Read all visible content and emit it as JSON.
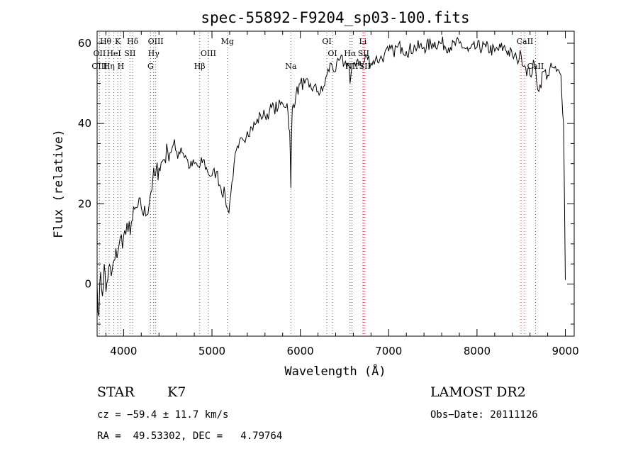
{
  "chart_data": {
    "type": "line",
    "title": "spec-55892-F9204_sp03-100.fits",
    "xlabel": "Wavelength (Å)",
    "ylabel": "Flux (relative)",
    "xlim": [
      3700,
      9100
    ],
    "ylim": [
      -13,
      63
    ],
    "xticks": [
      4000,
      5000,
      6000,
      7000,
      8000,
      9000
    ],
    "yticks": [
      0,
      20,
      40,
      60
    ],
    "grid": false,
    "series": [
      {
        "color": "#000000",
        "x": [
          3700,
          3720,
          3740,
          3760,
          3780,
          3800,
          3830,
          3860,
          3900,
          3950,
          4000,
          4050,
          4100,
          4150,
          4200,
          4250,
          4300,
          4330,
          4360,
          4400,
          4450,
          4500,
          4550,
          4600,
          4650,
          4700,
          4750,
          4800,
          4860,
          4900,
          4950,
          5000,
          5050,
          5100,
          5150,
          5170,
          5185,
          5200,
          5250,
          5300,
          5350,
          5400,
          5450,
          5500,
          5550,
          5600,
          5650,
          5700,
          5750,
          5800,
          5850,
          5880,
          5893,
          5900,
          5910,
          5950,
          6000,
          6050,
          6100,
          6150,
          6200,
          6250,
          6300,
          6350,
          6400,
          6450,
          6500,
          6550,
          6563,
          6600,
          6650,
          6700,
          6750,
          6800,
          6850,
          6900,
          6950,
          7000,
          7050,
          7100,
          7150,
          7200,
          7300,
          7400,
          7500,
          7600,
          7700,
          7800,
          7900,
          8000,
          8100,
          8200,
          8300,
          8400,
          8450,
          8500,
          8550,
          8600,
          8650,
          8700,
          8750,
          8800,
          8850,
          8900,
          8950,
          8980,
          9000
        ],
        "y": [
          0,
          -8,
          3,
          -3,
          5,
          -2,
          4,
          2,
          6,
          10,
          12,
          13,
          16,
          19,
          19,
          17,
          22,
          26,
          27,
          29,
          31,
          33,
          34,
          33,
          34,
          32,
          29,
          30,
          29,
          31,
          28,
          27,
          28,
          24,
          22,
          19,
          18,
          20,
          30,
          34,
          36,
          38,
          39,
          40,
          42,
          42,
          43,
          44,
          44,
          45,
          45,
          38,
          24,
          36,
          44,
          47,
          50,
          50,
          49,
          49,
          48,
          48,
          52,
          55,
          53,
          56,
          55,
          55,
          50,
          55,
          56,
          54,
          57,
          55,
          56,
          56,
          57,
          58,
          58,
          59,
          59,
          58,
          59,
          59,
          60,
          60,
          59,
          60,
          58,
          59,
          59,
          58,
          59,
          57,
          56,
          57,
          54,
          52,
          55,
          48,
          53,
          52,
          54,
          53,
          52,
          40,
          1
        ]
      }
    ],
    "annotations": [
      {
        "label": "Hθ",
        "x": 3797,
        "row": 1
      },
      {
        "label": "K",
        "x": 3934,
        "row": 1
      },
      {
        "label": "Hδ",
        "x": 4102,
        "row": 1
      },
      {
        "label": "OIII",
        "x": 4363,
        "row": 1
      },
      {
        "label": "Mg",
        "x": 5175,
        "row": 1
      },
      {
        "label": "OI",
        "x": 6300,
        "row": 1
      },
      {
        "label": "Li",
        "x": 6708,
        "row": 1
      },
      {
        "label": "CaII",
        "x": 8542,
        "row": 1
      },
      {
        "label": "OII",
        "x": 3727,
        "row": 2
      },
      {
        "label": "HeI",
        "x": 3889,
        "row": 2
      },
      {
        "label": "SII",
        "x": 4072,
        "row": 2
      },
      {
        "label": "Hγ",
        "x": 4340,
        "row": 2
      },
      {
        "label": "OIII",
        "x": 4959,
        "row": 2
      },
      {
        "label": "OI",
        "x": 6364,
        "row": 2
      },
      {
        "label": "Hα",
        "x": 6563,
        "row": 2
      },
      {
        "label": "SII",
        "x": 6716,
        "row": 2
      },
      {
        "label": "OIII",
        "x": 3727,
        "row": 3
      },
      {
        "label": "Hη",
        "x": 3835,
        "row": 3
      },
      {
        "label": "H",
        "x": 3968,
        "row": 3
      },
      {
        "label": "G",
        "x": 4305,
        "row": 3
      },
      {
        "label": "Hβ",
        "x": 4861,
        "row": 3
      },
      {
        "label": "Na",
        "x": 5893,
        "row": 3
      },
      {
        "label": "NII",
        "x": 6583,
        "row": 3
      },
      {
        "label": "SII",
        "x": 6731,
        "row": 3
      },
      {
        "label": "CaII",
        "x": 8662,
        "row": 3
      }
    ],
    "line_markers": {
      "black": [
        3727,
        3797,
        3835,
        3889,
        3934,
        3968,
        4072,
        4102,
        4305,
        4340,
        4363,
        4861,
        4959,
        5175,
        5893,
        6300,
        6364,
        6563,
        6583
      ],
      "red": [
        6708,
        6716,
        6731,
        8498,
        8542,
        8662
      ]
    }
  },
  "info": {
    "object_class": "STAR",
    "subclass": "K7",
    "survey": "LAMOST DR2",
    "cz": "cz = −59.4 ± 11.7 km/s",
    "obs_date": "Obs−Date: 20111126",
    "coords": "RA =  49.53302, DEC =   4.79764"
  }
}
